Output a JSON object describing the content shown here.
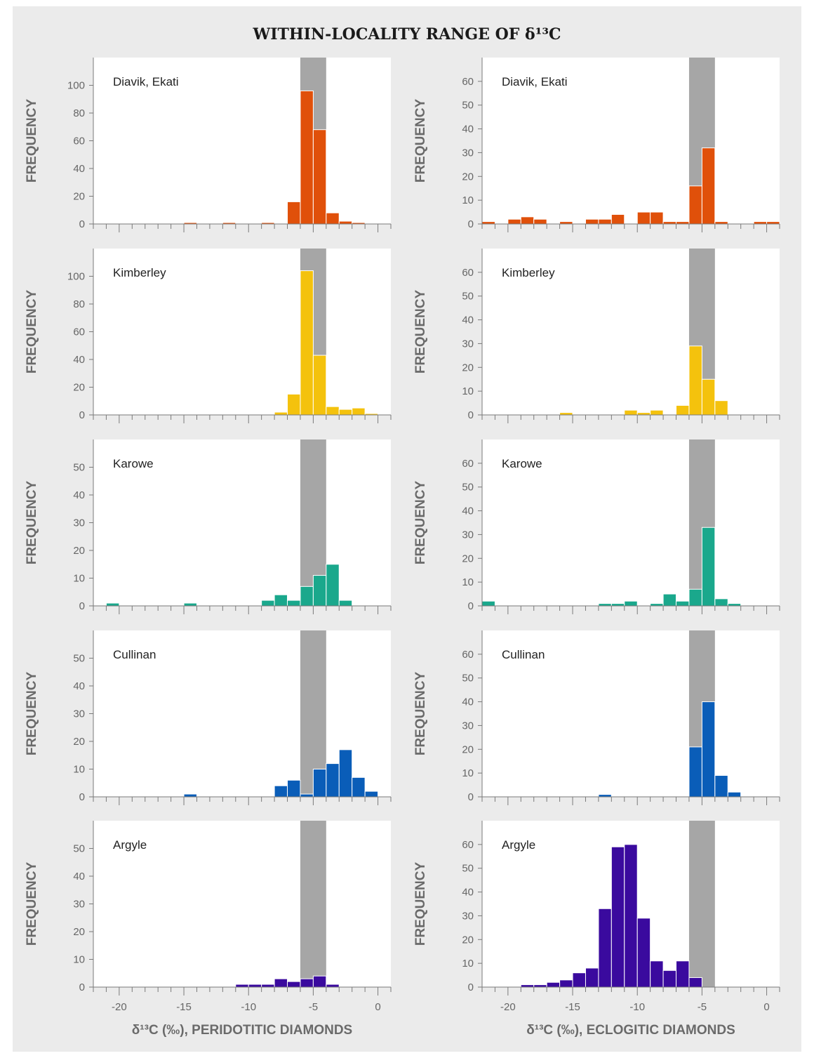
{
  "page": {
    "title": "WITHIN-LOCALITY RANGE OF δ¹³C"
  },
  "colors": {
    "band": "#a6a6a6",
    "axis": "#7a7a7a",
    "Diavik, Ekati": "#e0500a",
    "Kimberley": "#f4c20d",
    "Karowe": "#1aa88c",
    "Cullinan": "#0a5db8",
    "Argyle": "#3a0a9e"
  },
  "chart_data": [
    {
      "type": "bar",
      "locality": "Diavik, Ekati",
      "column": "peridotitic",
      "ylabel": "FREQUENCY",
      "xlabel": "",
      "xlim": [
        -22,
        1
      ],
      "ylim": [
        0,
        120
      ],
      "yticks": [
        0,
        20,
        40,
        60,
        80,
        100
      ],
      "shaded_range": [
        -6,
        -4
      ],
      "bin_width": 1,
      "bins": [
        [
          -15,
          1
        ],
        [
          -12,
          1
        ],
        [
          -9,
          1
        ],
        [
          -7,
          16
        ],
        [
          -6,
          96
        ],
        [
          -5,
          68
        ],
        [
          -4,
          8
        ],
        [
          -3,
          2
        ],
        [
          -2,
          1
        ]
      ]
    },
    {
      "type": "bar",
      "locality": "Diavik, Ekati",
      "column": "eclogitic",
      "ylabel": "FREQUENCY",
      "xlabel": "",
      "xlim": [
        -22,
        1
      ],
      "ylim": [
        0,
        70
      ],
      "yticks": [
        0,
        10,
        20,
        30,
        40,
        50,
        60
      ],
      "shaded_range": [
        -6,
        -4
      ],
      "bin_width": 1,
      "bins": [
        [
          -22,
          1
        ],
        [
          -20,
          2
        ],
        [
          -19,
          3
        ],
        [
          -18,
          2
        ],
        [
          -16,
          1
        ],
        [
          -14,
          2
        ],
        [
          -13,
          2
        ],
        [
          -12,
          4
        ],
        [
          -10,
          5
        ],
        [
          -9,
          5
        ],
        [
          -8,
          1
        ],
        [
          -7,
          1
        ],
        [
          -6,
          16
        ],
        [
          -5,
          32
        ],
        [
          -4,
          1
        ],
        [
          -1,
          1
        ],
        [
          0,
          1
        ]
      ]
    },
    {
      "type": "bar",
      "locality": "Kimberley",
      "column": "peridotitic",
      "ylabel": "FREQUENCY",
      "xlabel": "",
      "xlim": [
        -22,
        1
      ],
      "ylim": [
        0,
        120
      ],
      "yticks": [
        0,
        20,
        40,
        60,
        80,
        100
      ],
      "shaded_range": [
        -6,
        -4
      ],
      "bin_width": 1,
      "bins": [
        [
          -8,
          2
        ],
        [
          -7,
          15
        ],
        [
          -6,
          104
        ],
        [
          -5,
          43
        ],
        [
          -4,
          6
        ],
        [
          -3,
          4
        ],
        [
          -2,
          5
        ],
        [
          -1,
          1
        ]
      ]
    },
    {
      "type": "bar",
      "locality": "Kimberley",
      "column": "eclogitic",
      "ylabel": "FREQUENCY",
      "xlabel": "",
      "xlim": [
        -22,
        1
      ],
      "ylim": [
        0,
        70
      ],
      "yticks": [
        0,
        10,
        20,
        30,
        40,
        50,
        60
      ],
      "shaded_range": [
        -6,
        -4
      ],
      "bin_width": 1,
      "bins": [
        [
          -16,
          1
        ],
        [
          -11,
          2
        ],
        [
          -10,
          1
        ],
        [
          -9,
          2
        ],
        [
          -7,
          4
        ],
        [
          -6,
          29
        ],
        [
          -5,
          15
        ],
        [
          -4,
          6
        ]
      ]
    },
    {
      "type": "bar",
      "locality": "Karowe",
      "column": "peridotitic",
      "ylabel": "FREQUENCY",
      "xlabel": "",
      "xlim": [
        -22,
        1
      ],
      "ylim": [
        0,
        60
      ],
      "yticks": [
        0,
        10,
        20,
        30,
        40,
        50
      ],
      "shaded_range": [
        -6,
        -4
      ],
      "bin_width": 1,
      "bins": [
        [
          -21,
          1
        ],
        [
          -15,
          1
        ],
        [
          -9,
          2
        ],
        [
          -8,
          4
        ],
        [
          -7,
          2
        ],
        [
          -6,
          7
        ],
        [
          -5,
          11
        ],
        [
          -4,
          15
        ],
        [
          -3,
          2
        ]
      ]
    },
    {
      "type": "bar",
      "locality": "Karowe",
      "column": "eclogitic",
      "ylabel": "FREQUENCY",
      "xlabel": "",
      "xlim": [
        -22,
        1
      ],
      "ylim": [
        0,
        70
      ],
      "yticks": [
        0,
        10,
        20,
        30,
        40,
        50,
        60
      ],
      "shaded_range": [
        -6,
        -4
      ],
      "bin_width": 1,
      "bins": [
        [
          -22,
          2
        ],
        [
          -13,
          1
        ],
        [
          -12,
          1
        ],
        [
          -11,
          2
        ],
        [
          -9,
          1
        ],
        [
          -8,
          5
        ],
        [
          -7,
          2
        ],
        [
          -6,
          7
        ],
        [
          -5,
          33
        ],
        [
          -4,
          3
        ],
        [
          -3,
          1
        ]
      ]
    },
    {
      "type": "bar",
      "locality": "Cullinan",
      "column": "peridotitic",
      "ylabel": "FREQUENCY",
      "xlabel": "",
      "xlim": [
        -22,
        1
      ],
      "ylim": [
        0,
        60
      ],
      "yticks": [
        0,
        10,
        20,
        30,
        40,
        50
      ],
      "shaded_range": [
        -6,
        -4
      ],
      "bin_width": 1,
      "bins": [
        [
          -15,
          1
        ],
        [
          -8,
          4
        ],
        [
          -7,
          6
        ],
        [
          -6,
          1
        ],
        [
          -5,
          10
        ],
        [
          -4,
          12
        ],
        [
          -3,
          17
        ],
        [
          -2,
          7
        ],
        [
          -1,
          2
        ]
      ]
    },
    {
      "type": "bar",
      "locality": "Cullinan",
      "column": "eclogitic",
      "ylabel": "FREQUENCY",
      "xlabel": "",
      "xlim": [
        -22,
        1
      ],
      "ylim": [
        0,
        70
      ],
      "yticks": [
        0,
        10,
        20,
        30,
        40,
        50,
        60
      ],
      "shaded_range": [
        -6,
        -4
      ],
      "bin_width": 1,
      "bins": [
        [
          -13,
          1
        ],
        [
          -6,
          21
        ],
        [
          -5,
          40
        ],
        [
          -4,
          9
        ],
        [
          -3,
          2
        ]
      ]
    },
    {
      "type": "bar",
      "locality": "Argyle",
      "column": "peridotitic",
      "ylabel": "FREQUENCY",
      "xlabel": "δ¹³C (‰), PERIDOTITIC DIAMONDS",
      "xlim": [
        -22,
        1
      ],
      "ylim": [
        0,
        60
      ],
      "yticks": [
        0,
        10,
        20,
        30,
        40,
        50
      ],
      "xticks": [
        -20,
        -15,
        -10,
        -5,
        0
      ],
      "shaded_range": [
        -6,
        -4
      ],
      "bin_width": 1,
      "bins": [
        [
          -11,
          1
        ],
        [
          -10,
          1
        ],
        [
          -9,
          1
        ],
        [
          -8,
          3
        ],
        [
          -7,
          2
        ],
        [
          -6,
          3
        ],
        [
          -5,
          4
        ],
        [
          -4,
          1
        ]
      ]
    },
    {
      "type": "bar",
      "locality": "Argyle",
      "column": "eclogitic",
      "ylabel": "FREQUENCY",
      "xlabel": "δ¹³C (‰), ECLOGITIC DIAMONDS",
      "xlim": [
        -22,
        1
      ],
      "ylim": [
        0,
        70
      ],
      "yticks": [
        0,
        10,
        20,
        30,
        40,
        50,
        60
      ],
      "xticks": [
        -20,
        -15,
        -10,
        -5,
        0
      ],
      "shaded_range": [
        -6,
        -4
      ],
      "bin_width": 1,
      "bins": [
        [
          -19,
          1
        ],
        [
          -18,
          1
        ],
        [
          -17,
          2
        ],
        [
          -16,
          3
        ],
        [
          -15,
          6
        ],
        [
          -14,
          8
        ],
        [
          -13,
          33
        ],
        [
          -12,
          59
        ],
        [
          -11,
          60
        ],
        [
          -10,
          29
        ],
        [
          -9,
          11
        ],
        [
          -8,
          7
        ],
        [
          -7,
          11
        ],
        [
          -6,
          4
        ]
      ]
    }
  ]
}
